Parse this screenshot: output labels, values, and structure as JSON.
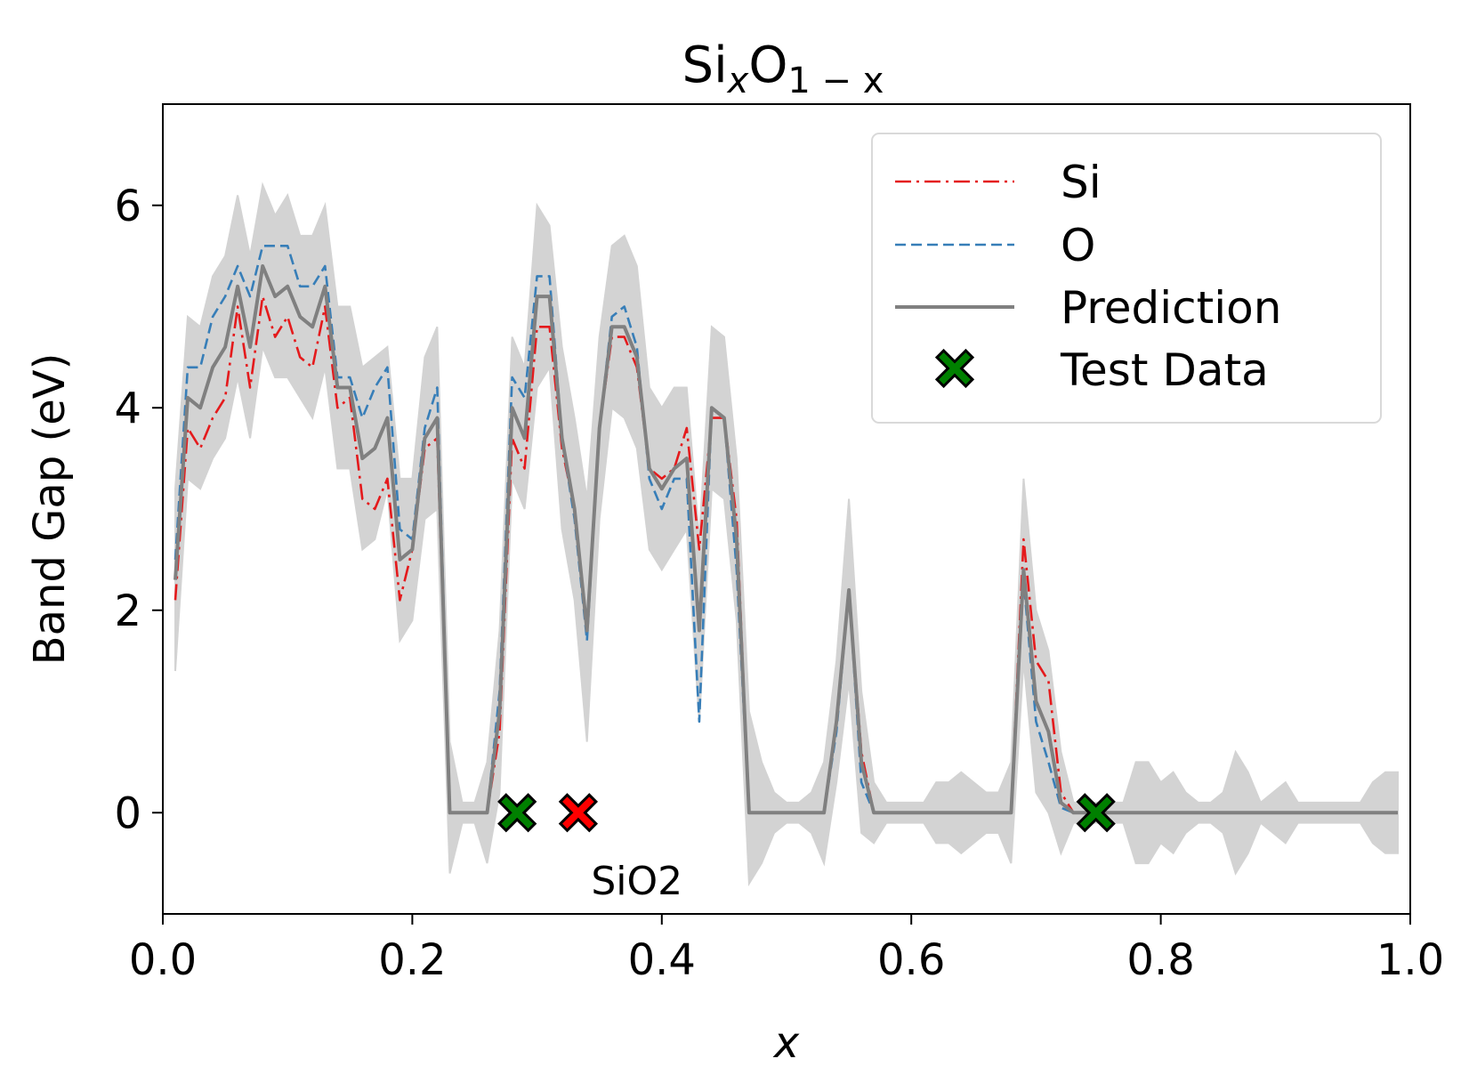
{
  "chart_data": {
    "type": "line",
    "title": "Si",
    "title_sub": "x",
    "title_mid": "O",
    "title_tail": "1 − x",
    "xlabel": "x",
    "ylabel": "Band Gap (eV)",
    "xlim": [
      0.0,
      1.0
    ],
    "ylim": [
      -1.0,
      7.0
    ],
    "xticks": [
      "0.0",
      "0.2",
      "0.4",
      "0.6",
      "0.8",
      "1.0"
    ],
    "yticks": [
      "0",
      "2",
      "4",
      "6"
    ],
    "grid": false,
    "legend_position": "top-right",
    "x": [
      0.01,
      0.02,
      0.03,
      0.04,
      0.05,
      0.06,
      0.07,
      0.08,
      0.09,
      0.1,
      0.11,
      0.12,
      0.13,
      0.14,
      0.15,
      0.16,
      0.17,
      0.18,
      0.19,
      0.2,
      0.21,
      0.22,
      0.23,
      0.24,
      0.25,
      0.26,
      0.27,
      0.28,
      0.29,
      0.3,
      0.31,
      0.32,
      0.33,
      0.34,
      0.35,
      0.36,
      0.37,
      0.38,
      0.39,
      0.4,
      0.41,
      0.42,
      0.43,
      0.44,
      0.45,
      0.46,
      0.47,
      0.48,
      0.49,
      0.5,
      0.51,
      0.52,
      0.53,
      0.54,
      0.55,
      0.56,
      0.57,
      0.58,
      0.59,
      0.6,
      0.61,
      0.62,
      0.63,
      0.64,
      0.65,
      0.66,
      0.67,
      0.68,
      0.69,
      0.7,
      0.71,
      0.72,
      0.73,
      0.74,
      0.75,
      0.76,
      0.77,
      0.78,
      0.79,
      0.8,
      0.81,
      0.82,
      0.83,
      0.84,
      0.85,
      0.86,
      0.87,
      0.88,
      0.89,
      0.9,
      0.91,
      0.92,
      0.93,
      0.94,
      0.95,
      0.96,
      0.97,
      0.98,
      0.99
    ],
    "series": [
      {
        "name": "Si",
        "color": "#e41a1c",
        "style": "dashdot",
        "values": [
          2.1,
          3.8,
          3.6,
          3.9,
          4.1,
          5.0,
          4.2,
          5.1,
          4.7,
          4.9,
          4.5,
          4.4,
          5.0,
          4.0,
          4.1,
          3.1,
          3.0,
          3.3,
          2.1,
          2.6,
          3.6,
          3.7,
          0.0,
          0.0,
          0.0,
          0.0,
          0.8,
          3.7,
          3.4,
          4.8,
          4.8,
          3.6,
          3.0,
          1.8,
          3.8,
          4.7,
          4.7,
          4.4,
          3.4,
          3.3,
          3.4,
          3.8,
          2.6,
          3.9,
          3.9,
          2.9,
          0.0,
          0.0,
          0.0,
          0.0,
          0.0,
          0.0,
          0.0,
          0.9,
          2.2,
          0.6,
          0.0,
          0.0,
          0.0,
          0.0,
          0.0,
          0.0,
          0.0,
          0.0,
          0.0,
          0.0,
          0.0,
          0.0,
          2.7,
          1.5,
          1.3,
          0.2,
          0.0,
          0.0,
          0.0,
          0.0,
          0.0,
          0.0,
          0.0,
          0.0,
          0.0,
          0.0,
          0.0,
          0.0,
          0.0,
          0.0,
          0.0,
          0.0,
          0.0,
          0.0,
          0.0,
          0.0,
          0.0,
          0.0,
          0.0,
          0.0,
          0.0,
          0.0,
          0.0
        ]
      },
      {
        "name": "O",
        "color": "#377eb8",
        "style": "dashed",
        "values": [
          2.5,
          4.4,
          4.4,
          4.9,
          5.1,
          5.4,
          5.1,
          5.6,
          5.6,
          5.6,
          5.2,
          5.2,
          5.4,
          4.3,
          4.3,
          3.9,
          4.2,
          4.4,
          2.8,
          2.7,
          3.8,
          4.2,
          0.0,
          0.0,
          0.0,
          0.0,
          1.2,
          4.3,
          4.1,
          5.3,
          5.3,
          3.7,
          2.9,
          1.7,
          3.8,
          4.9,
          5.0,
          4.6,
          3.3,
          3.0,
          3.3,
          3.3,
          0.9,
          4.0,
          3.9,
          2.4,
          0.0,
          0.0,
          0.0,
          0.0,
          0.0,
          0.0,
          0.0,
          0.8,
          2.2,
          0.3,
          0.0,
          0.0,
          0.0,
          0.0,
          0.0,
          0.0,
          0.0,
          0.0,
          0.0,
          0.0,
          0.0,
          0.0,
          2.3,
          0.9,
          0.5,
          0.05,
          0.0,
          0.0,
          0.0,
          0.0,
          0.0,
          0.0,
          0.0,
          0.0,
          0.0,
          0.0,
          0.0,
          0.0,
          0.0,
          0.0,
          0.0,
          0.0,
          0.0,
          0.0,
          0.0,
          0.0,
          0.0,
          0.0,
          0.0,
          0.0,
          0.0,
          0.0,
          0.0
        ]
      },
      {
        "name": "Prediction",
        "color": "#808080",
        "style": "solid",
        "values": [
          2.3,
          4.1,
          4.0,
          4.4,
          4.6,
          5.2,
          4.6,
          5.4,
          5.1,
          5.2,
          4.9,
          4.8,
          5.2,
          4.2,
          4.2,
          3.5,
          3.6,
          3.9,
          2.5,
          2.6,
          3.7,
          3.9,
          0.0,
          0.0,
          0.0,
          0.0,
          1.0,
          4.0,
          3.7,
          5.1,
          5.1,
          3.7,
          3.0,
          1.8,
          3.8,
          4.8,
          4.8,
          4.5,
          3.4,
          3.2,
          3.4,
          3.5,
          1.8,
          4.0,
          3.9,
          2.7,
          0.0,
          0.0,
          0.0,
          0.0,
          0.0,
          0.0,
          0.0,
          0.9,
          2.2,
          0.5,
          0.0,
          0.0,
          0.0,
          0.0,
          0.0,
          0.0,
          0.0,
          0.0,
          0.0,
          0.0,
          0.0,
          0.0,
          2.4,
          1.1,
          0.8,
          0.1,
          0.0,
          0.0,
          0.0,
          0.0,
          0.0,
          0.0,
          0.0,
          0.0,
          0.0,
          0.0,
          0.0,
          0.0,
          0.0,
          0.0,
          0.0,
          0.0,
          0.0,
          0.0,
          0.0,
          0.0,
          0.0,
          0.0,
          0.0,
          0.0,
          0.0,
          0.0,
          0.0
        ],
        "band_upper": [
          3.2,
          4.9,
          4.8,
          5.3,
          5.5,
          6.1,
          5.5,
          6.2,
          5.9,
          6.1,
          5.7,
          5.7,
          6.0,
          5.0,
          5.0,
          4.4,
          4.5,
          4.6,
          3.3,
          3.3,
          4.5,
          4.8,
          0.7,
          0.1,
          0.1,
          0.5,
          1.8,
          4.7,
          4.4,
          6.0,
          5.8,
          4.6,
          3.9,
          3.1,
          4.7,
          5.6,
          5.7,
          5.4,
          4.2,
          4.0,
          4.2,
          4.2,
          2.7,
          4.8,
          4.7,
          3.5,
          1.0,
          0.5,
          0.2,
          0.1,
          0.1,
          0.2,
          0.5,
          1.5,
          3.1,
          1.2,
          0.3,
          0.1,
          0.1,
          0.1,
          0.1,
          0.3,
          0.3,
          0.4,
          0.3,
          0.2,
          0.2,
          0.5,
          3.3,
          2.0,
          1.6,
          0.6,
          0.1,
          0.1,
          0.1,
          0.1,
          0.1,
          0.5,
          0.5,
          0.3,
          0.4,
          0.2,
          0.1,
          0.1,
          0.2,
          0.6,
          0.4,
          0.1,
          0.2,
          0.3,
          0.1,
          0.1,
          0.1,
          0.1,
          0.1,
          0.1,
          0.3,
          0.4,
          0.4
        ],
        "band_lower": [
          1.4,
          3.3,
          3.2,
          3.5,
          3.7,
          4.3,
          3.7,
          4.6,
          4.3,
          4.3,
          4.1,
          3.9,
          4.4,
          3.4,
          3.4,
          2.6,
          2.7,
          3.2,
          1.7,
          1.9,
          2.9,
          3.0,
          -0.6,
          -0.1,
          -0.1,
          -0.5,
          0.2,
          3.3,
          3.0,
          4.2,
          4.4,
          2.8,
          2.1,
          0.7,
          2.9,
          4.0,
          3.9,
          3.6,
          2.6,
          2.4,
          2.6,
          2.8,
          0.9,
          3.2,
          3.1,
          1.9,
          -0.7,
          -0.5,
          -0.2,
          -0.1,
          -0.1,
          -0.2,
          -0.5,
          0.3,
          1.3,
          -0.2,
          -0.3,
          -0.1,
          -0.1,
          -0.1,
          -0.1,
          -0.3,
          -0.3,
          -0.4,
          -0.3,
          -0.2,
          -0.2,
          -0.5,
          1.5,
          0.2,
          0.0,
          -0.4,
          -0.1,
          -0.1,
          -0.1,
          -0.1,
          -0.1,
          -0.5,
          -0.5,
          -0.3,
          -0.4,
          -0.2,
          -0.1,
          -0.1,
          -0.2,
          -0.6,
          -0.4,
          -0.1,
          -0.2,
          -0.3,
          -0.1,
          -0.1,
          -0.1,
          -0.1,
          -0.1,
          -0.1,
          -0.3,
          -0.4,
          -0.4
        ]
      }
    ],
    "band_color": "#d3d3d3",
    "test_data": {
      "name": "Test Data",
      "color": "#008000",
      "points": [
        {
          "x": 0.284,
          "y": 0.0
        },
        {
          "x": 0.748,
          "y": 0.0
        }
      ]
    },
    "highlight_point": {
      "x": 0.333,
      "y": 0.0,
      "color": "#ff0000"
    },
    "annotation": {
      "text": "SiO2",
      "x": 0.38,
      "y": -0.7,
      "color": "#ff0000"
    }
  }
}
